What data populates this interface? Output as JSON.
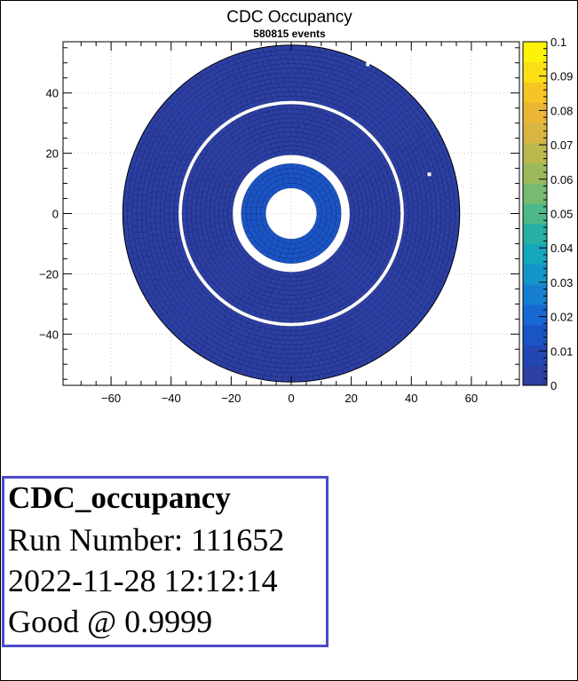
{
  "chart_data": {
    "type": "heatmap",
    "title": "CDC Occupancy",
    "subtitle": "580815 events",
    "xlabel": "",
    "ylabel": "",
    "xlim": [
      -76,
      76
    ],
    "ylim": [
      -57,
      57
    ],
    "x_ticks": [
      -60,
      -40,
      -20,
      0,
      20,
      40,
      60
    ],
    "y_ticks": [
      -40,
      -20,
      0,
      20,
      40
    ],
    "z_range": [
      0,
      0.1
    ],
    "colorbar_ticks": [
      "0",
      "0.01",
      "0.02",
      "0.03",
      "0.04",
      "0.05",
      "0.06",
      "0.07",
      "0.08",
      "0.09",
      "0.1"
    ],
    "palette": [
      "#2c3fa3",
      "#2247b4",
      "#1a55c6",
      "#1768d3",
      "#167fd1",
      "#1395c9",
      "#14a6bd",
      "#27afa5",
      "#4db88a",
      "#76bb70",
      "#9cba5c",
      "#bdb84e",
      "#d9b641",
      "#eab634",
      "#f6c524",
      "#fbdf16",
      "#fdf20a"
    ],
    "rings": [
      {
        "r_inner": 8.5,
        "r_outer": 16.6,
        "occupancy": 0.012
      },
      {
        "r_inner": 19.5,
        "r_outer": 36.3,
        "occupancy": 0.003
      },
      {
        "r_inner": 37.5,
        "r_outer": 56.0,
        "occupancy": 0.002
      }
    ],
    "dead_cells": [
      {
        "x": 25.5,
        "y": 49.5
      },
      {
        "x": 46.0,
        "y": 13.0
      }
    ],
    "grid": true
  },
  "info": {
    "title": "CDC_occupancy",
    "run": "Run Number: 111652",
    "datetime": "2022-11-28 12:12:14",
    "status": "Good @ 0.9999"
  }
}
